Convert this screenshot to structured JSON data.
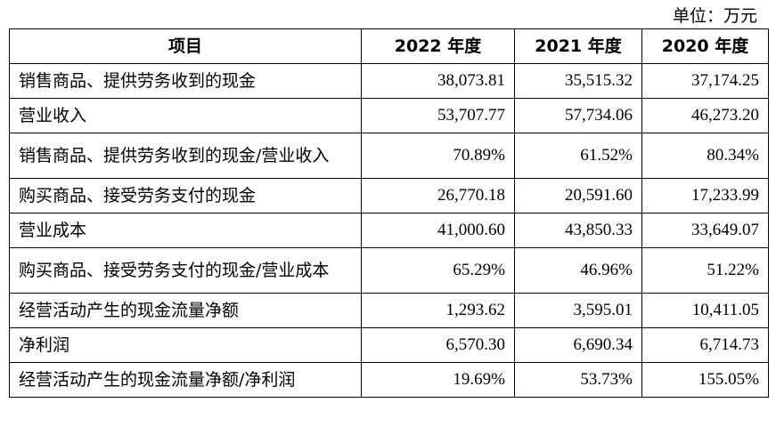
{
  "unit_label": "单位：万元",
  "headers": [
    "项目",
    "2022 年度",
    "2021 年度",
    "2020 年度"
  ],
  "rows": [
    {
      "label": "销售商品、提供劳务收到的现金",
      "v2022": "38,073.81",
      "v2021": "35,515.32",
      "v2020": "37,174.25"
    },
    {
      "label": "营业收入",
      "v2022": "53,707.77",
      "v2021": "57,734.06",
      "v2020": "46,273.20"
    },
    {
      "label": "销售商品、提供劳务收到的现金/营业收入",
      "v2022": "70.89%",
      "v2021": "61.52%",
      "v2020": "80.34%"
    },
    {
      "label": "购买商品、接受劳务支付的现金",
      "v2022": "26,770.18",
      "v2021": "20,591.60",
      "v2020": "17,233.99"
    },
    {
      "label": "营业成本",
      "v2022": "41,000.60",
      "v2021": "43,850.33",
      "v2020": "33,649.07"
    },
    {
      "label": "购买商品、接受劳务支付的现金/营业成本",
      "v2022": "65.29%",
      "v2021": "46.96%",
      "v2020": "51.22%"
    },
    {
      "label": "经营活动产生的现金流量净额",
      "v2022": "1,293.62",
      "v2021": "3,595.01",
      "v2020": "10,411.05"
    },
    {
      "label": "净利润",
      "v2022": "6,570.30",
      "v2021": "6,690.34",
      "v2020": "6,714.73"
    },
    {
      "label": "经营活动产生的现金流量净额/净利润",
      "v2022": "19.69%",
      "v2021": "53.73%",
      "v2020": "155.05%"
    }
  ]
}
